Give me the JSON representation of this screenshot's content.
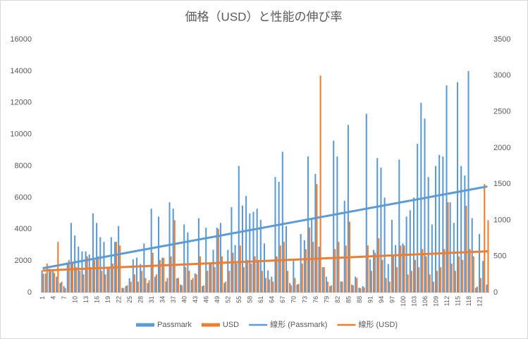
{
  "chart_data": {
    "type": "bar",
    "title": "価格（USD）と性能の伸び率",
    "categories": [
      "1",
      null,
      null,
      "4",
      null,
      null,
      "7",
      null,
      null,
      "10",
      null,
      null,
      "13",
      null,
      null,
      "16",
      null,
      null,
      "19",
      null,
      null,
      "22",
      null,
      null,
      "25",
      null,
      null,
      "28",
      null,
      null,
      "31",
      null,
      null,
      "34",
      null,
      null,
      "37",
      null,
      null,
      "40",
      null,
      null,
      "43",
      null,
      null,
      "46",
      null,
      null,
      "49",
      null,
      null,
      "52",
      null,
      null,
      "55",
      null,
      null,
      "58",
      null,
      null,
      "61",
      null,
      null,
      "64",
      null,
      null,
      "67",
      null,
      null,
      "70",
      null,
      null,
      "73",
      null,
      null,
      "76",
      null,
      null,
      "79",
      null,
      null,
      "82",
      null,
      null,
      "85",
      null,
      null,
      "88",
      null,
      null,
      "91",
      null,
      null,
      "94",
      null,
      null,
      "97",
      null,
      null,
      "100",
      null,
      null,
      "103",
      null,
      null,
      "106",
      null,
      null,
      "109",
      null,
      null,
      "112",
      null,
      null,
      "115",
      null,
      null,
      "118",
      null,
      null,
      "121",
      null,
      null
    ],
    "series": [
      {
        "name": "Passmark",
        "color": "#5b9bd5",
        "axis": "y",
        "trendline": {
          "name": "線形 (Passmark)",
          "color": "#5b9bd5"
        },
        "values": [
          1400,
          1200,
          1500,
          1400,
          1000,
          600,
          400,
          1900,
          4400,
          3600,
          2900,
          2600,
          2600,
          2400,
          5000,
          4400,
          3500,
          3200,
          1500,
          3500,
          3200,
          4200,
          300,
          400,
          900,
          2100,
          2200,
          1800,
          3100,
          600,
          5300,
          1000,
          4800,
          2200,
          700,
          5700,
          5300,
          900,
          500,
          4300,
          3800,
          800,
          1200,
          4700,
          400,
          4100,
          1800,
          2700,
          4100,
          4400,
          600,
          2700,
          5400,
          3000,
          8000,
          5500,
          6100,
          5000,
          5100,
          5300,
          4600,
          3100,
          1400,
          1000,
          7300,
          7000,
          8900,
          4200,
          600,
          2000,
          500,
          3700,
          3300,
          8600,
          4600,
          7500,
          2900,
          1600,
          1000,
          400,
          9600,
          8600,
          700,
          5800,
          10600,
          500,
          1000,
          300,
          400,
          11300,
          2100,
          2700,
          8500,
          7900,
          6000,
          1800,
          4600,
          3000,
          8400,
          3100,
          4800,
          5200,
          6000,
          9400,
          12000,
          11000,
          7300,
          4300,
          8000,
          8700,
          8600,
          13100,
          5700,
          4400,
          13300,
          8000,
          7400,
          14000,
          4700,
          300,
          3700,
          2000,
          500
        ]
      },
      {
        "name": "USD",
        "color": "#ed7d31",
        "axis": "y2",
        "trendline": {
          "name": "線形 (USD)",
          "color": "#ed7d31"
        },
        "values": [
          260,
          400,
          300,
          270,
          700,
          150,
          60,
          450,
          400,
          350,
          300,
          250,
          500,
          350,
          450,
          500,
          300,
          250,
          350,
          400,
          700,
          650,
          60,
          100,
          150,
          250,
          150,
          300,
          200,
          170,
          550,
          250,
          450,
          480,
          200,
          500,
          1000,
          200,
          100,
          350,
          300,
          200,
          250,
          500,
          100,
          300,
          400,
          350,
          880,
          500,
          150,
          300,
          550,
          400,
          650,
          350,
          450,
          400,
          500,
          450,
          300,
          200,
          180,
          150,
          500,
          650,
          700,
          300,
          100,
          200,
          120,
          400,
          600,
          900,
          700,
          1500,
          3000,
          350,
          150,
          100,
          600,
          700,
          150,
          650,
          980,
          100,
          200,
          60,
          70,
          650,
          300,
          550,
          750,
          450,
          200,
          150,
          500,
          350,
          650,
          650,
          250,
          300,
          450,
          350,
          600,
          500,
          250,
          150,
          300,
          350,
          600,
          1250,
          400,
          300,
          500,
          450,
          1200,
          600,
          500,
          80,
          200,
          1500,
          1000
        ]
      }
    ],
    "ylim": [
      0,
      16000
    ],
    "yticks": [
      0,
      2000,
      4000,
      6000,
      8000,
      10000,
      12000,
      14000,
      16000
    ],
    "y2lim": [
      0,
      3500
    ],
    "y2ticks": [
      0,
      500,
      1000,
      1500,
      2000,
      2500,
      3000,
      3500
    ],
    "grid": false,
    "legend": "bottom"
  }
}
